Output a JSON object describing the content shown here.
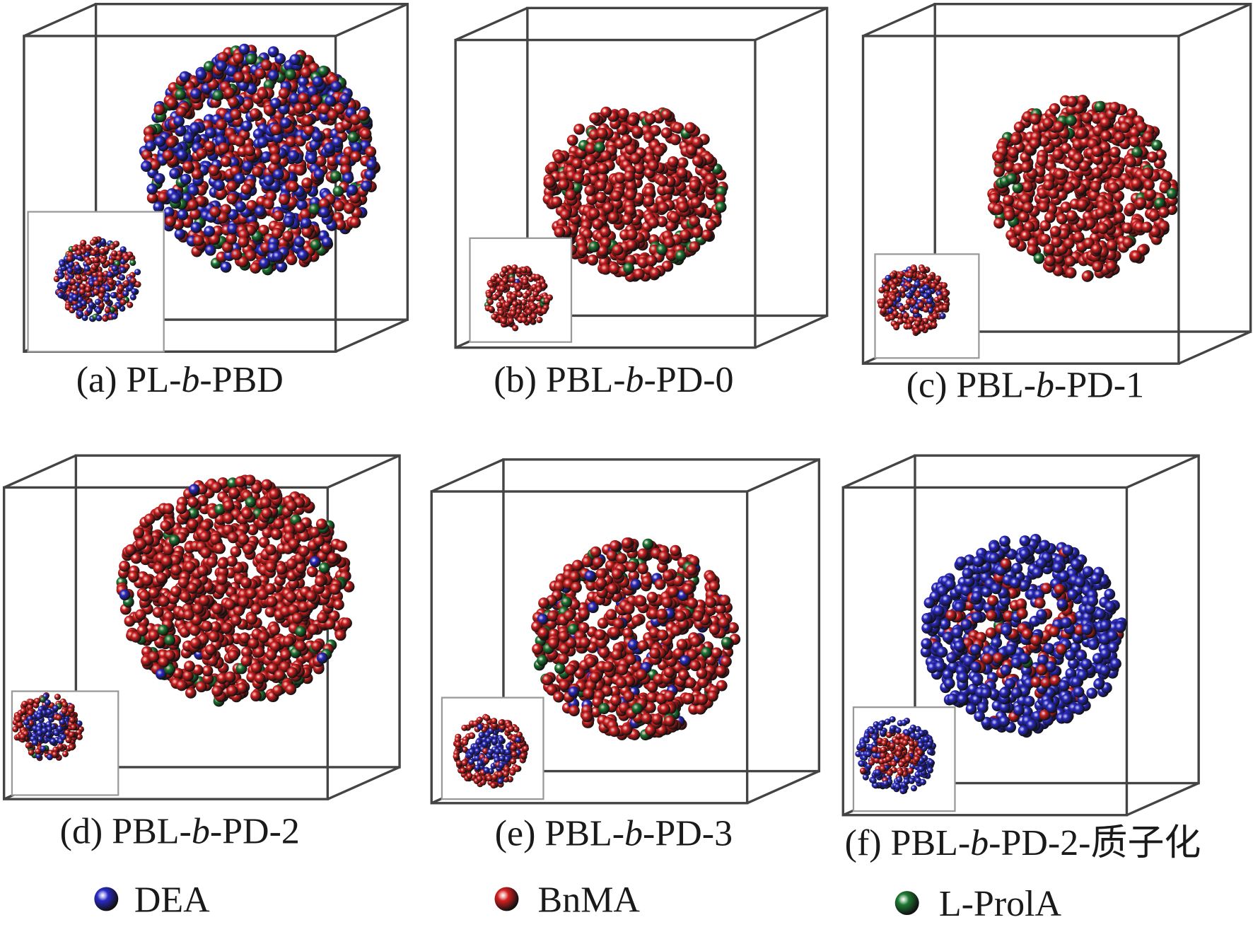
{
  "panels": [
    {
      "label": [
        "(a) PL-",
        "b",
        "-PBD"
      ]
    },
    {
      "label": [
        "(b) PBL-",
        "b",
        "-PD-0"
      ]
    },
    {
      "label": [
        "(c) PBL-",
        "b",
        "-PD-1"
      ]
    },
    {
      "label": [
        "(d) PBL-",
        "b",
        "-PD-2"
      ]
    },
    {
      "label": [
        "(e) PBL-",
        "b",
        "-PD-3"
      ]
    },
    {
      "label": [
        "(f) PBL-",
        "b",
        "-PD-2-质子化"
      ]
    }
  ],
  "legend": [
    {
      "label": "DEA",
      "color": "#2a2ac8"
    },
    {
      "label": "BnMA",
      "color": "#d42020"
    },
    {
      "label": "L-ProlA",
      "color": "#1f7a33"
    }
  ]
}
